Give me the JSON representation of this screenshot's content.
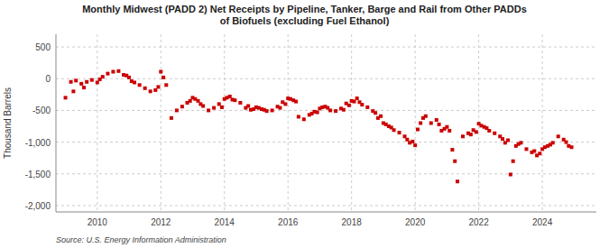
{
  "chart_data": {
    "type": "scatter",
    "title": "Monthly Midwest (PADD 2) Net Receipts by Pipeline, Tanker, Barge and Rail from Other PADDs\nof Biofuels (excluding Fuel Ethanol)",
    "y_label": "Thousand Barrels",
    "source": "Source: U.S. Energy Information Administration",
    "color": "#cc0000",
    "marker": "square",
    "grid": true,
    "xlim": [
      2008.7,
      2025.7
    ],
    "xticks": [
      2010,
      2012,
      2014,
      2016,
      2018,
      2020,
      2022,
      2024
    ],
    "ylim": [
      -2100,
      700
    ],
    "yticks": [
      500,
      0,
      -500,
      {
        "value": -1000,
        "label": "-1,000"
      },
      {
        "value": -1500,
        "label": "-1,500"
      },
      {
        "value": -2000,
        "label": "-2,000"
      }
    ],
    "x": [
      2009.0,
      2009.17,
      2009.33,
      2009.5,
      2009.67,
      2009.83,
      2010.0,
      2010.17,
      2010.33,
      2010.5,
      2010.67,
      2010.83,
      2011.0,
      2011.17,
      2011.33,
      2011.5,
      2011.67,
      2011.83,
      2012.0,
      2012.17,
      2012.33,
      2012.5,
      2012.67,
      2012.83,
      2013.0,
      2013.17,
      2013.33,
      2013.5,
      2013.67,
      2013.83,
      2014.0,
      2014.17,
      2014.33,
      2014.5,
      2014.67,
      2014.83,
      2015.0,
      2015.17,
      2015.33,
      2015.5,
      2015.67,
      2015.83,
      2016.0,
      2016.17,
      2016.33,
      2016.5,
      2016.67,
      2016.83,
      2017.0,
      2017.17,
      2017.33,
      2017.5,
      2017.67,
      2017.83,
      2018.0,
      2018.17,
      2018.33,
      2018.5,
      2018.67,
      2018.83,
      2019.0,
      2019.17,
      2019.33,
      2019.5,
      2019.67,
      2019.83,
      2020.0,
      2020.17,
      2020.33,
      2020.5,
      2020.67,
      2020.83,
      2021.0,
      2021.17,
      2021.33,
      2021.5,
      2021.67,
      2021.83,
      2022.0,
      2022.17,
      2022.33,
      2022.5,
      2022.67,
      2022.83,
      2023.0,
      2023.17,
      2023.33,
      2023.5,
      2023.67,
      2023.83,
      2024.0,
      2024.17,
      2024.33,
      2024.5,
      2024.67,
      2024.83,
      2009.25,
      2009.58,
      2010.08,
      2010.92,
      2011.08,
      2011.92,
      2012.08,
      2012.92,
      2013.08,
      2013.25,
      2013.92,
      2014.08,
      2014.25,
      2014.75,
      2014.92,
      2015.08,
      2015.25,
      2015.75,
      2015.92,
      2016.08,
      2016.25,
      2016.75,
      2016.92,
      2017.08,
      2017.25,
      2017.75,
      2017.92,
      2018.08,
      2018.25,
      2018.75,
      2018.92,
      2019.08,
      2019.25,
      2019.75,
      2019.92,
      2020.08,
      2020.25,
      2020.75,
      2020.92,
      2021.08,
      2021.25,
      2021.75,
      2021.92,
      2022.08,
      2022.25,
      2022.75,
      2022.92,
      2023.08,
      2023.25,
      2023.75,
      2023.92,
      2024.08,
      2024.25,
      2024.75,
      2024.92
    ],
    "values": [
      -300,
      -50,
      -30,
      -80,
      -50,
      -20,
      -60,
      30,
      80,
      110,
      120,
      60,
      20,
      -60,
      -100,
      -150,
      -200,
      -180,
      110,
      -100,
      -620,
      -500,
      -440,
      -380,
      -300,
      -350,
      -430,
      -500,
      -460,
      -400,
      -320,
      -280,
      -340,
      -380,
      -460,
      -490,
      -450,
      -480,
      -510,
      -500,
      -440,
      -370,
      -310,
      -340,
      -600,
      -640,
      -570,
      -520,
      -470,
      -440,
      -500,
      -510,
      -470,
      -390,
      -350,
      -310,
      -410,
      -450,
      -510,
      -620,
      -700,
      -750,
      -810,
      -850,
      -910,
      -1010,
      -1050,
      -700,
      -590,
      -700,
      -650,
      -820,
      -760,
      -1120,
      -1620,
      -910,
      -860,
      -810,
      -710,
      -760,
      -820,
      -860,
      -910,
      -1010,
      -1510,
      -1060,
      -1010,
      -1110,
      -1160,
      -1210,
      -1110,
      -1060,
      -1010,
      -910,
      -960,
      -1060,
      -200,
      -140,
      -10,
      50,
      -40,
      -130,
      20,
      -350,
      -320,
      -400,
      -450,
      -300,
      -330,
      -430,
      -480,
      -460,
      -490,
      -460,
      -400,
      -320,
      -360,
      -550,
      -530,
      -450,
      -460,
      -490,
      -420,
      -360,
      -370,
      -540,
      -590,
      -720,
      -770,
      -960,
      -990,
      -800,
      -620,
      -720,
      -790,
      -820,
      -1300,
      -880,
      -840,
      -740,
      -780,
      -950,
      -970,
      -1300,
      -1030,
      -1140,
      -1180,
      -1080,
      -1040,
      -1000,
      -1080
    ]
  }
}
